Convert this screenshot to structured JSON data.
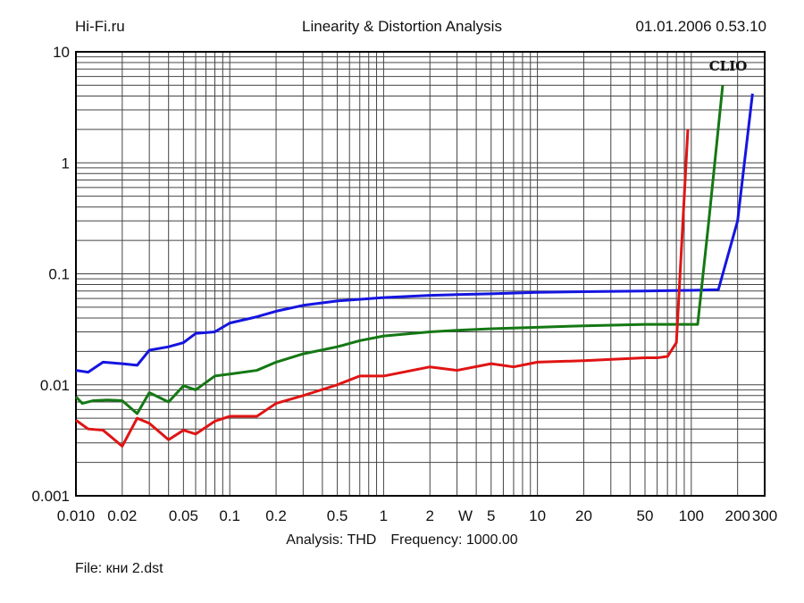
{
  "header": {
    "left": "Hi-Fi.ru",
    "center": "Linearity & Distortion Analysis",
    "right": "01.01.2006 0.53.10"
  },
  "logo": "CLIO",
  "footer": {
    "analysis": "Analysis: THD",
    "frequency": "Frequency: 1000.00",
    "file": "File: кни 2.dst"
  },
  "chart_data": {
    "type": "line",
    "x_scale": "log",
    "y_scale": "log",
    "xlim": [
      0.01,
      300
    ],
    "ylim": [
      0.001,
      10
    ],
    "grid": true,
    "x_unit_label": "W",
    "x_ticks": [
      "0.010",
      "0.02",
      "0.05",
      "0.1",
      "0.2",
      "0.5",
      "1",
      "2",
      "5",
      "10",
      "20",
      "50",
      "100",
      "200",
      "300"
    ],
    "y_ticks": [
      "0.001",
      "0.01",
      "0.1",
      "1",
      "10"
    ],
    "colors": {
      "blue": "#1515e0",
      "green": "#147814",
      "red": "#e01414"
    },
    "series": [
      {
        "color": "#1515e0",
        "points": [
          [
            0.01,
            0.0135
          ],
          [
            0.012,
            0.013
          ],
          [
            0.015,
            0.016
          ],
          [
            0.02,
            0.0155
          ],
          [
            0.025,
            0.015
          ],
          [
            0.03,
            0.0205
          ],
          [
            0.04,
            0.022
          ],
          [
            0.05,
            0.024
          ],
          [
            0.06,
            0.029
          ],
          [
            0.08,
            0.03
          ],
          [
            0.1,
            0.036
          ],
          [
            0.15,
            0.041
          ],
          [
            0.2,
            0.046
          ],
          [
            0.3,
            0.052
          ],
          [
            0.5,
            0.057
          ],
          [
            1,
            0.061
          ],
          [
            2,
            0.064
          ],
          [
            3,
            0.065
          ],
          [
            5,
            0.066
          ],
          [
            10,
            0.068
          ],
          [
            20,
            0.069
          ],
          [
            50,
            0.07
          ],
          [
            100,
            0.071
          ],
          [
            150,
            0.072
          ],
          [
            200,
            0.3
          ],
          [
            250,
            4.2
          ]
        ]
      },
      {
        "color": "#147814",
        "points": [
          [
            0.01,
            0.0078
          ],
          [
            0.011,
            0.0068
          ],
          [
            0.013,
            0.0072
          ],
          [
            0.016,
            0.0073
          ],
          [
            0.02,
            0.0072
          ],
          [
            0.025,
            0.0055
          ],
          [
            0.03,
            0.0085
          ],
          [
            0.04,
            0.007
          ],
          [
            0.05,
            0.0098
          ],
          [
            0.06,
            0.009
          ],
          [
            0.08,
            0.012
          ],
          [
            0.1,
            0.0125
          ],
          [
            0.15,
            0.0135
          ],
          [
            0.2,
            0.016
          ],
          [
            0.3,
            0.019
          ],
          [
            0.5,
            0.022
          ],
          [
            0.7,
            0.025
          ],
          [
            1,
            0.0275
          ],
          [
            2,
            0.03
          ],
          [
            3,
            0.031
          ],
          [
            5,
            0.032
          ],
          [
            10,
            0.033
          ],
          [
            20,
            0.034
          ],
          [
            50,
            0.035
          ],
          [
            100,
            0.035
          ],
          [
            110,
            0.035
          ],
          [
            130,
            0.3
          ],
          [
            160,
            5.0
          ]
        ]
      },
      {
        "color": "#e01414",
        "points": [
          [
            0.01,
            0.0048
          ],
          [
            0.012,
            0.004
          ],
          [
            0.015,
            0.0039
          ],
          [
            0.02,
            0.0028
          ],
          [
            0.025,
            0.005
          ],
          [
            0.03,
            0.0045
          ],
          [
            0.04,
            0.0032
          ],
          [
            0.05,
            0.0039
          ],
          [
            0.06,
            0.0036
          ],
          [
            0.08,
            0.0047
          ],
          [
            0.1,
            0.0052
          ],
          [
            0.15,
            0.0052
          ],
          [
            0.2,
            0.0068
          ],
          [
            0.3,
            0.008
          ],
          [
            0.5,
            0.01
          ],
          [
            0.7,
            0.012
          ],
          [
            1,
            0.012
          ],
          [
            2,
            0.0145
          ],
          [
            3,
            0.0135
          ],
          [
            5,
            0.0155
          ],
          [
            7,
            0.0145
          ],
          [
            10,
            0.016
          ],
          [
            20,
            0.0165
          ],
          [
            50,
            0.0175
          ],
          [
            60,
            0.0175
          ],
          [
            70,
            0.018
          ],
          [
            80,
            0.024
          ],
          [
            95,
            2.0
          ]
        ]
      }
    ]
  }
}
